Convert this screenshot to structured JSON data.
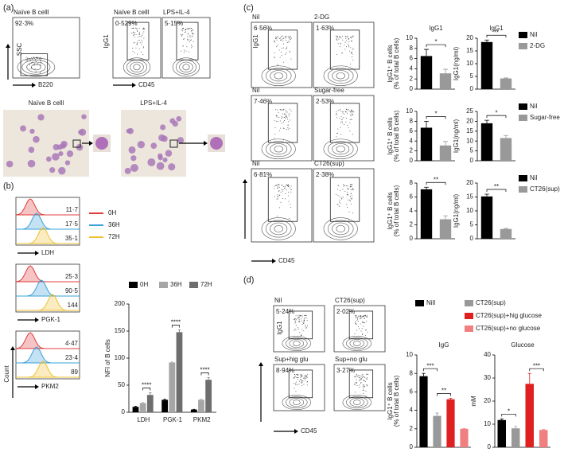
{
  "panel_labels": [
    "(a)",
    "(b)",
    "(c)",
    "(d)"
  ],
  "flow_a": {
    "plots": [
      {
        "title": "Naïve B celll",
        "gate": "92·3%"
      },
      {
        "title": "Naïve B celll",
        "gate": "0·529%"
      },
      {
        "title": "LPS+IL-4",
        "gate": "5·15%"
      }
    ],
    "y_labels": [
      "SSC",
      "IgG1"
    ],
    "x_labels": [
      "B220",
      "CD45"
    ]
  },
  "images_a": [
    "Naïve B celll",
    "LPS+IL-4"
  ],
  "hist_b": {
    "legend": [
      {
        "name": "0H",
        "color": "#e03c3c"
      },
      {
        "name": "36H",
        "color": "#3aa0d8"
      },
      {
        "name": "72H",
        "color": "#f0c030"
      }
    ],
    "rows": [
      {
        "marker": "LDH",
        "values": [
          "11·7",
          "17·5",
          "35·1"
        ]
      },
      {
        "marker": "PGK-1",
        "values": [
          "25·3",
          "90·5",
          "144"
        ]
      },
      {
        "marker": "PKM2",
        "values": [
          "4·47",
          "23·4",
          "89"
        ]
      }
    ],
    "y_label": "Count"
  },
  "flow_c": {
    "rows": [
      [
        {
          "title": "Nil",
          "gate": "6·56%"
        },
        {
          "title": "2-DG",
          "gate": "1·63%"
        }
      ],
      [
        {
          "title": "Nil",
          "gate": "7·46%"
        },
        {
          "title": "Sugar-free",
          "gate": "2·53%"
        }
      ],
      [
        {
          "title": "Nil",
          "gate": "6·81%"
        },
        {
          "title": "CT26(sup)",
          "gate": "2·38%"
        }
      ]
    ],
    "y_label": "IgG1",
    "x_label": "CD45"
  },
  "flow_d": {
    "plots": [
      {
        "title": "Nil",
        "gate": "5·24%"
      },
      {
        "title": "CT26(sup)",
        "gate": "2·02%"
      },
      {
        "title": "Sup+hig glu",
        "gate": "8·94%"
      },
      {
        "title": "Sup+no glu",
        "gate": "3·27%"
      }
    ],
    "y_label": "IgG1",
    "x_label": "CD45"
  },
  "chart_data": [
    {
      "type": "bar",
      "categories": [
        "LDH",
        "PGK-1",
        "PKM2"
      ],
      "series": [
        {
          "name": "0H",
          "color": "#000000",
          "values": [
            10,
            23,
            5
          ],
          "errors": [
            1,
            1,
            0.5
          ]
        },
        {
          "name": "36H",
          "color": "#a6a6a6",
          "values": [
            17,
            92,
            23
          ],
          "errors": [
            1,
            1,
            1
          ]
        },
        {
          "name": "72H",
          "color": "#6e6e6e",
          "values": [
            32,
            148,
            60
          ],
          "errors": [
            4,
            4,
            4
          ]
        }
      ],
      "ylim": [
        0,
        200
      ],
      "yticks": [
        0,
        50,
        100,
        150,
        200
      ],
      "y_label": "NFI of B cells",
      "annotations": [
        "****",
        "****",
        "****"
      ]
    },
    {
      "type": "bar",
      "title": "IgG1",
      "series": [
        {
          "color": "#000000",
          "values": [
            6.5
          ],
          "errors": [
            1.3
          ]
        },
        {
          "color": "#999999",
          "values": [
            3.1
          ],
          "errors": [
            0.8
          ]
        }
      ],
      "ylim": [
        0,
        10
      ],
      "yticks": [
        0,
        2,
        4,
        6,
        8,
        10
      ],
      "y_label": [
        "IgG1⁺ B cells",
        "(% of total B cells)"
      ],
      "annotations": [
        "*"
      ]
    },
    {
      "type": "bar",
      "title": "IgG1",
      "series": [
        {
          "name": "Nil",
          "color": "#000000",
          "values": [
            18.5
          ],
          "errors": [
            0.8
          ]
        },
        {
          "name": "2-DG",
          "color": "#999999",
          "values": [
            4.2
          ],
          "errors": [
            0.2
          ]
        }
      ],
      "ylim": [
        0,
        20
      ],
      "yticks": [
        0,
        5,
        10,
        15,
        20
      ],
      "y_label": "IgG1(ng/ml)",
      "annotations": [
        "**"
      ]
    },
    {
      "type": "bar",
      "series": [
        {
          "color": "#000000",
          "values": [
            6.7
          ],
          "errors": [
            1.3
          ]
        },
        {
          "color": "#999999",
          "values": [
            3.1
          ],
          "errors": [
            0.8
          ]
        }
      ],
      "ylim": [
        0,
        10
      ],
      "yticks": [
        0,
        2,
        4,
        6,
        8,
        10
      ],
      "y_label": [
        "IgG1⁺ B cells",
        "(% of total B cells)"
      ],
      "annotations": [
        "*"
      ]
    },
    {
      "type": "bar",
      "series": [
        {
          "name": "Nil",
          "color": "#000000",
          "values": [
            19
          ],
          "errors": [
            1.5
          ]
        },
        {
          "name": "Sugar-free",
          "color": "#999999",
          "values": [
            11.5
          ],
          "errors": [
            1.3
          ]
        }
      ],
      "ylim": [
        0,
        25
      ],
      "yticks": [
        0,
        5,
        10,
        15,
        20,
        25
      ],
      "y_label": "IgG1(ng/ml)",
      "annotations": [
        "*"
      ]
    },
    {
      "type": "bar",
      "series": [
        {
          "color": "#000000",
          "values": [
            7.1
          ],
          "errors": [
            0.3
          ]
        },
        {
          "color": "#999999",
          "values": [
            2.8
          ],
          "errors": [
            0.5
          ]
        }
      ],
      "ylim": [
        0,
        8
      ],
      "yticks": [
        0,
        2,
        4,
        6,
        8
      ],
      "y_label": [
        "IgG1⁺ B cells",
        "(% of total B cells)"
      ],
      "annotations": [
        "**"
      ]
    },
    {
      "type": "bar",
      "series": [
        {
          "name": "Nil",
          "color": "#000000",
          "values": [
            15.2
          ],
          "errors": [
            0.8
          ]
        },
        {
          "name": "CT26(sup)",
          "color": "#999999",
          "values": [
            3.5
          ],
          "errors": [
            0.2
          ]
        }
      ],
      "ylim": [
        0,
        20
      ],
      "yticks": [
        0,
        5,
        10,
        15,
        20
      ],
      "y_label": "IgG1(ng/ml)",
      "annotations": [
        "**"
      ]
    },
    {
      "type": "bar",
      "title": "IgG",
      "series": [
        {
          "name": "Nill",
          "color": "#000000",
          "values": [
            7.7
          ],
          "errors": [
            0.3
          ]
        },
        {
          "name": "CT26(sup)",
          "color": "#999999",
          "values": [
            3.4
          ],
          "errors": [
            0.3
          ]
        },
        {
          "name": "CT26(sup)+hig glucose",
          "color": "#e02020",
          "values": [
            5.2
          ],
          "errors": [
            0.1
          ]
        },
        {
          "name": "CT26(sup)+no glucose",
          "color": "#f08080",
          "values": [
            2.0
          ],
          "errors": [
            0.05
          ]
        }
      ],
      "ylim": [
        0,
        10
      ],
      "yticks": [
        0,
        2,
        4,
        6,
        8,
        10
      ],
      "y_label": [
        "IgG1⁺ B cells",
        "(% of total B cells)"
      ],
      "annotations": [
        "***",
        "**"
      ]
    },
    {
      "type": "bar",
      "title": "Glucose",
      "series": [
        {
          "color": "#000000",
          "values": [
            11.8
          ],
          "errors": [
            0.5
          ]
        },
        {
          "color": "#999999",
          "values": [
            8.2
          ],
          "errors": [
            0.8
          ]
        },
        {
          "color": "#e02020",
          "values": [
            27.5
          ],
          "errors": [
            4.5
          ]
        },
        {
          "color": "#f08080",
          "values": [
            7.5
          ],
          "errors": [
            0.2
          ]
        }
      ],
      "ylim": [
        0,
        40
      ],
      "yticks": [
        0,
        10,
        20,
        30,
        40
      ],
      "y_label": "mM",
      "annotations": [
        "*",
        "***"
      ]
    }
  ]
}
